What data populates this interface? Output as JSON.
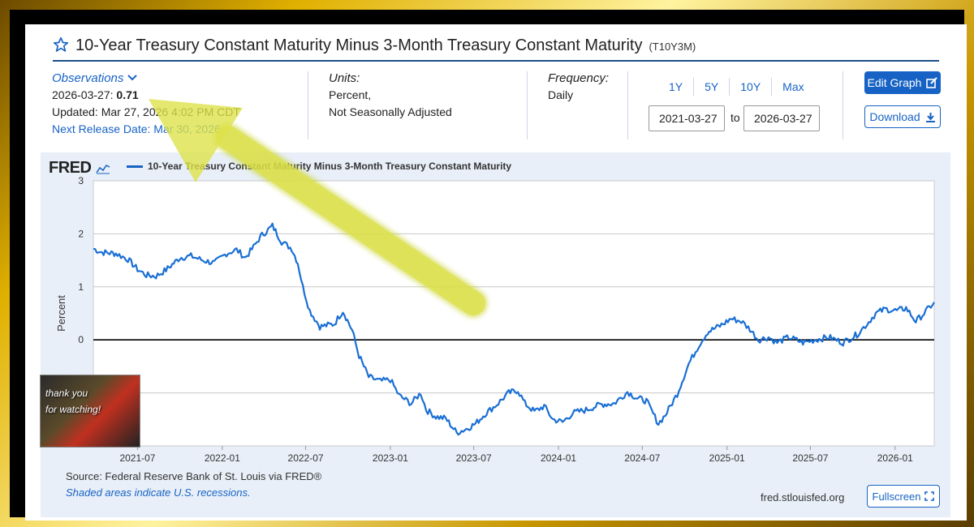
{
  "header": {
    "title": "10-Year Treasury Constant Maturity Minus 3-Month Treasury Constant Maturity",
    "series_id": "(T10Y3M)"
  },
  "observations": {
    "link_label": "Observations",
    "date_label": "2026-03-27:",
    "value": "0.71",
    "updated": "Updated: Mar 27, 2026 4:02 PM CDT",
    "next_release": "Next Release Date: Mar 30, 2026"
  },
  "units": {
    "label": "Units:",
    "line1": "Percent,",
    "line2": "Not Seasonally Adjusted"
  },
  "frequency": {
    "label": "Frequency:",
    "value": "Daily"
  },
  "range": {
    "buttons": [
      "1Y",
      "5Y",
      "10Y",
      "Max"
    ],
    "start": "2021-03-27",
    "to": "to",
    "end": "2026-03-27"
  },
  "actions": {
    "edit": "Edit Graph",
    "download": "Download",
    "fullscreen": "Fullscreen"
  },
  "chart_panel": {
    "logo": "FRED",
    "source": "Source: Federal Reserve Bank of St. Louis via FRED®",
    "shaded": "Shaded areas indicate U.S. recessions.",
    "site": "fred.stlouisfed.org"
  },
  "thumbnail": {
    "line1": "thank you",
    "line2": "for watching!"
  },
  "colors": {
    "accent": "#1763c5",
    "series": "#1a6fd4",
    "arrow": "#d8e040"
  },
  "chart_data": {
    "type": "line",
    "ylabel": "Percent",
    "ylim": [
      -2,
      3
    ],
    "yticks": [
      "3",
      "2",
      "1",
      "0"
    ],
    "xticks": [
      "2021-07",
      "2022-01",
      "2022-07",
      "2023-01",
      "2023-07",
      "2024-01",
      "2024-07",
      "2025-01",
      "2025-07",
      "2026-01"
    ],
    "grid": true,
    "legend": "top-left",
    "series": [
      {
        "name": "10-Year Treasury Constant Maturity Minus 3-Month Treasury Constant Maturity",
        "x": [
          "2021-03-27",
          "2021-04-15",
          "2021-05-15",
          "2021-06-10",
          "2021-07-01",
          "2021-07-20",
          "2021-08-10",
          "2021-09-01",
          "2021-10-01",
          "2021-10-25",
          "2021-11-20",
          "2021-12-15",
          "2022-01-10",
          "2022-02-01",
          "2022-02-20",
          "2022-03-10",
          "2022-03-25",
          "2022-04-07",
          "2022-04-20",
          "2022-05-10",
          "2022-06-01",
          "2022-06-14",
          "2022-06-25",
          "2022-07-10",
          "2022-08-01",
          "2022-09-01",
          "2022-09-20",
          "2022-10-10",
          "2022-10-25",
          "2022-11-15",
          "2022-12-10",
          "2023-01-01",
          "2023-01-20",
          "2023-02-15",
          "2023-03-08",
          "2023-03-20",
          "2023-04-10",
          "2023-05-01",
          "2023-05-25",
          "2023-06-15",
          "2023-07-05",
          "2023-07-25",
          "2023-08-20",
          "2023-09-15",
          "2023-10-05",
          "2023-10-20",
          "2023-11-10",
          "2023-12-01",
          "2023-12-20",
          "2024-01-10",
          "2024-02-01",
          "2024-03-01",
          "2024-04-01",
          "2024-05-01",
          "2024-05-30",
          "2024-06-20",
          "2024-07-10",
          "2024-08-05",
          "2024-08-20",
          "2024-09-15",
          "2024-10-10",
          "2024-11-01",
          "2024-11-20",
          "2024-12-20",
          "2025-01-10",
          "2025-02-01",
          "2025-02-20",
          "2025-03-10",
          "2025-04-01",
          "2025-04-20",
          "2025-05-15",
          "2025-06-15",
          "2025-07-10",
          "2025-08-10",
          "2025-09-10",
          "2025-10-10",
          "2025-11-01",
          "2025-11-20",
          "2025-12-10",
          "2026-01-05",
          "2026-01-25",
          "2026-02-15",
          "2026-03-05",
          "2026-03-27"
        ],
        "values": [
          1.72,
          1.65,
          1.63,
          1.52,
          1.33,
          1.22,
          1.2,
          1.32,
          1.55,
          1.58,
          1.5,
          1.45,
          1.63,
          1.7,
          1.55,
          1.75,
          1.95,
          2.05,
          2.15,
          1.85,
          1.72,
          1.45,
          1.0,
          0.55,
          0.25,
          0.3,
          0.55,
          0.18,
          -0.3,
          -0.7,
          -0.78,
          -0.75,
          -1.05,
          -1.2,
          -1.0,
          -1.32,
          -1.45,
          -1.48,
          -1.75,
          -1.68,
          -1.58,
          -1.4,
          -1.22,
          -1.0,
          -0.95,
          -1.2,
          -1.35,
          -1.25,
          -1.5,
          -1.55,
          -1.38,
          -1.32,
          -1.22,
          -1.2,
          -0.98,
          -1.1,
          -1.15,
          -1.58,
          -1.42,
          -1.02,
          -0.45,
          -0.1,
          0.15,
          0.28,
          0.4,
          0.35,
          0.2,
          0.0,
          0.05,
          -0.05,
          0.05,
          -0.05,
          0.0,
          0.05,
          -0.05,
          0.1,
          0.3,
          0.5,
          0.58,
          0.55,
          0.6,
          0.35,
          0.5,
          0.71
        ]
      }
    ]
  }
}
